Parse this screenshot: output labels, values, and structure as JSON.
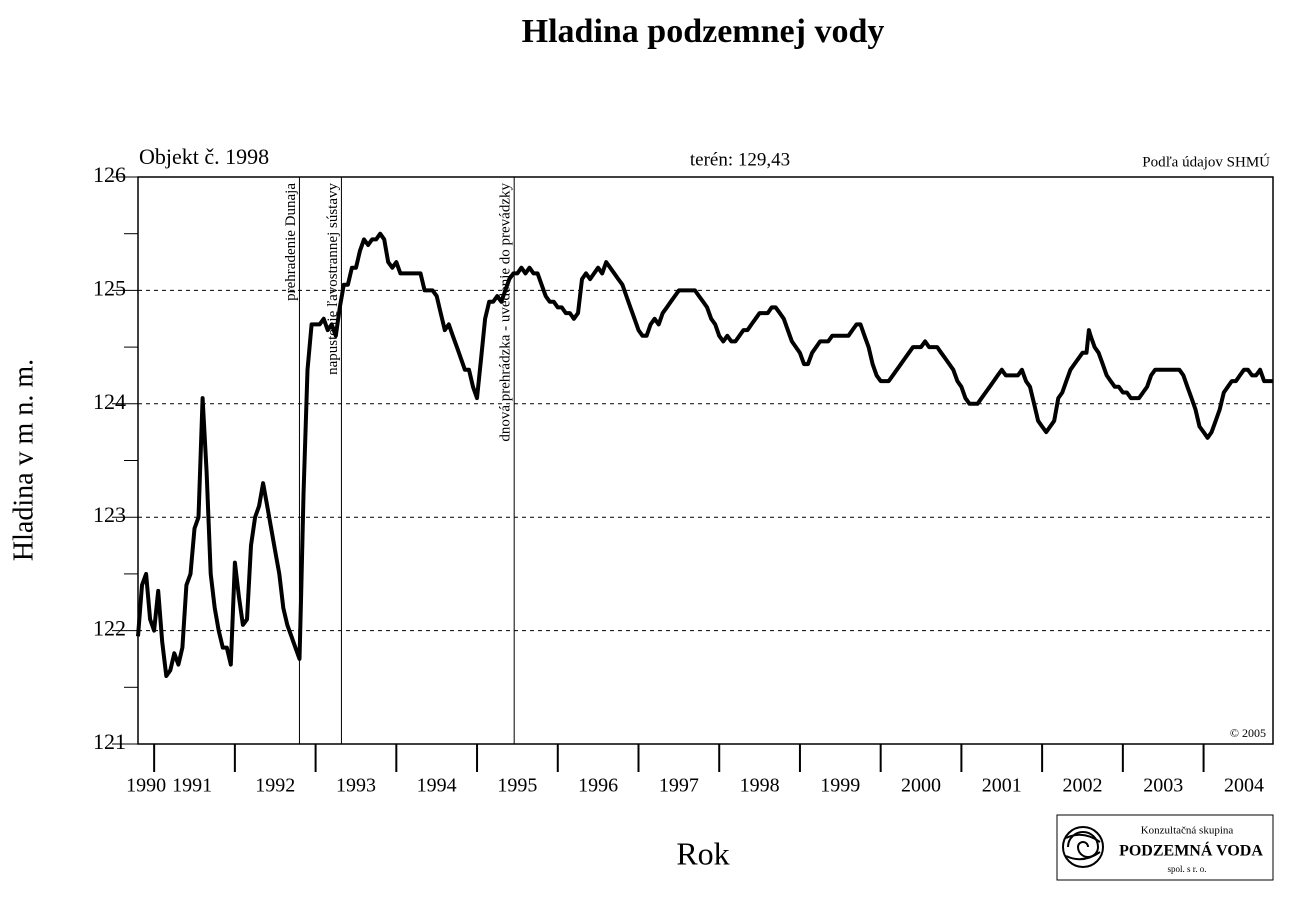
{
  "chart_data": {
    "type": "line",
    "title": "Hladina podzemnej vody",
    "object_label": "Objekt č. 1998",
    "terrain_label": "terén: 129,43",
    "source": "Podľa údajov SHMÚ",
    "copyright": "© 2005",
    "y_label": "Hladina v m n. m.",
    "x_label": "Rok",
    "logo": {
      "line1": "Konzultačná skupina",
      "line2": "PODZEMNÁ VODA",
      "line3": "spol. s r. o."
    },
    "color": "#000000",
    "grid": true,
    "xlim": [
      1990.8,
      2004.86
    ],
    "ylim": [
      121,
      126
    ],
    "yticks": [
      121,
      122,
      123,
      124,
      125,
      126
    ],
    "yticks_minor": [
      121.5,
      122.5,
      123.5,
      124.5,
      125.5
    ],
    "xticks": [
      {
        "value": 1990.9,
        "label": "1990"
      },
      {
        "value": 1991.47,
        "label": "1991"
      },
      {
        "value": 1992.5,
        "label": "1992"
      },
      {
        "value": 1993.5,
        "label": "1993"
      },
      {
        "value": 1994.5,
        "label": "1994"
      },
      {
        "value": 1995.5,
        "label": "1995"
      },
      {
        "value": 1996.5,
        "label": "1996"
      },
      {
        "value": 1997.5,
        "label": "1997"
      },
      {
        "value": 1998.5,
        "label": "1998"
      },
      {
        "value": 1999.5,
        "label": "1999"
      },
      {
        "value": 2000.5,
        "label": "2000"
      },
      {
        "value": 2001.5,
        "label": "2001"
      },
      {
        "value": 2002.5,
        "label": "2002"
      },
      {
        "value": 2003.5,
        "label": "2003"
      },
      {
        "value": 2004.5,
        "label": "2004"
      }
    ],
    "xticks_major": [
      1991,
      1992,
      1993,
      1994,
      1995,
      1996,
      1997,
      1998,
      1999,
      2000,
      2001,
      2002,
      2003,
      2004
    ],
    "annotations": [
      {
        "text": "prehradenie Dunaja",
        "x": 1992.8
      },
      {
        "text": "napustenie ľavostrannej sústavy",
        "x": 1993.32
      },
      {
        "text": "dnová prehrádzka - uvedenie do prevádzky",
        "x": 1995.46
      }
    ],
    "x": [
      1990.8,
      1990.85,
      1990.9,
      1990.95,
      1991.0,
      1991.05,
      1991.1,
      1991.15,
      1991.2,
      1991.25,
      1991.3,
      1991.35,
      1991.4,
      1991.45,
      1991.5,
      1991.55,
      1991.6,
      1991.65,
      1991.7,
      1991.75,
      1991.8,
      1991.85,
      1991.9,
      1991.95,
      1992.0,
      1992.05,
      1992.1,
      1992.15,
      1992.2,
      1992.25,
      1992.3,
      1992.35,
      1992.4,
      1992.45,
      1992.5,
      1992.55,
      1992.6,
      1992.65,
      1992.7,
      1992.75,
      1992.8,
      1992.82,
      1992.85,
      1992.9,
      1992.95,
      1993.0,
      1993.05,
      1993.1,
      1993.15,
      1993.2,
      1993.25,
      1993.3,
      1993.35,
      1993.4,
      1993.45,
      1993.5,
      1993.55,
      1993.6,
      1993.65,
      1993.7,
      1993.75,
      1993.8,
      1993.85,
      1993.9,
      1993.95,
      1994.0,
      1994.05,
      1994.1,
      1994.15,
      1994.2,
      1994.25,
      1994.3,
      1994.35,
      1994.4,
      1994.45,
      1994.5,
      1994.55,
      1994.6,
      1994.65,
      1994.7,
      1994.75,
      1994.8,
      1994.85,
      1994.9,
      1994.95,
      1995.0,
      1995.05,
      1995.1,
      1995.15,
      1995.2,
      1995.25,
      1995.3,
      1995.35,
      1995.4,
      1995.45,
      1995.5,
      1995.55,
      1995.6,
      1995.65,
      1995.7,
      1995.75,
      1995.8,
      1995.85,
      1995.9,
      1995.95,
      1996.0,
      1996.05,
      1996.1,
      1996.15,
      1996.2,
      1996.25,
      1996.3,
      1996.35,
      1996.4,
      1996.45,
      1996.5,
      1996.55,
      1996.6,
      1996.65,
      1996.7,
      1996.75,
      1996.8,
      1996.85,
      1996.9,
      1996.95,
      1997.0,
      1997.05,
      1997.1,
      1997.15,
      1997.2,
      1997.25,
      1997.3,
      1997.35,
      1997.4,
      1997.45,
      1997.5,
      1997.55,
      1997.6,
      1997.65,
      1997.7,
      1997.75,
      1997.8,
      1997.85,
      1997.9,
      1997.95,
      1998.0,
      1998.05,
      1998.1,
      1998.15,
      1998.2,
      1998.25,
      1998.3,
      1998.35,
      1998.4,
      1998.45,
      1998.5,
      1998.55,
      1998.6,
      1998.65,
      1998.7,
      1998.75,
      1998.8,
      1998.85,
      1998.9,
      1998.95,
      1999.0,
      1999.05,
      1999.1,
      1999.15,
      1999.2,
      1999.25,
      1999.3,
      1999.35,
      1999.4,
      1999.45,
      1999.5,
      1999.55,
      1999.6,
      1999.65,
      1999.7,
      1999.75,
      1999.8,
      1999.85,
      1999.9,
      1999.95,
      2000.0,
      2000.05,
      2000.1,
      2000.15,
      2000.2,
      2000.25,
      2000.3,
      2000.35,
      2000.4,
      2000.45,
      2000.5,
      2000.55,
      2000.6,
      2000.65,
      2000.7,
      2000.75,
      2000.8,
      2000.85,
      2000.9,
      2000.95,
      2001.0,
      2001.05,
      2001.1,
      2001.15,
      2001.2,
      2001.25,
      2001.3,
      2001.35,
      2001.4,
      2001.45,
      2001.5,
      2001.55,
      2001.6,
      2001.65,
      2001.7,
      2001.75,
      2001.8,
      2001.85,
      2001.9,
      2001.95,
      2002.0,
      2002.05,
      2002.1,
      2002.15,
      2002.2,
      2002.25,
      2002.3,
      2002.35,
      2002.4,
      2002.45,
      2002.5,
      2002.55,
      2002.58,
      2002.6,
      2002.65,
      2002.7,
      2002.75,
      2002.8,
      2002.85,
      2002.9,
      2002.95,
      2003.0,
      2003.05,
      2003.1,
      2003.15,
      2003.2,
      2003.25,
      2003.3,
      2003.35,
      2003.4,
      2003.45,
      2003.5,
      2003.55,
      2003.6,
      2003.65,
      2003.7,
      2003.75,
      2003.8,
      2003.85,
      2003.9,
      2003.95,
      2004.0,
      2004.05,
      2004.1,
      2004.15,
      2004.2,
      2004.25,
      2004.3,
      2004.35,
      2004.4,
      2004.45,
      2004.5,
      2004.55,
      2004.6,
      2004.65,
      2004.7,
      2004.75,
      2004.86
    ],
    "values": [
      121.95,
      122.4,
      122.5,
      122.1,
      122.0,
      122.35,
      121.9,
      121.6,
      121.65,
      121.8,
      121.7,
      121.85,
      122.4,
      122.5,
      122.9,
      123.0,
      124.05,
      123.4,
      122.5,
      122.2,
      122.0,
      121.85,
      121.85,
      121.7,
      122.6,
      122.3,
      122.05,
      122.1,
      122.75,
      123.0,
      123.1,
      123.3,
      123.1,
      122.9,
      122.7,
      122.5,
      122.2,
      122.05,
      121.95,
      121.85,
      121.75,
      122.3,
      123.2,
      124.3,
      124.7,
      124.7,
      124.7,
      124.75,
      124.65,
      124.7,
      124.6,
      124.85,
      125.05,
      125.05,
      125.2,
      125.2,
      125.35,
      125.45,
      125.4,
      125.45,
      125.45,
      125.5,
      125.45,
      125.25,
      125.2,
      125.25,
      125.15,
      125.15,
      125.15,
      125.15,
      125.15,
      125.15,
      125.0,
      125.0,
      125.0,
      124.95,
      124.8,
      124.65,
      124.7,
      124.6,
      124.5,
      124.4,
      124.3,
      124.3,
      124.15,
      124.05,
      124.4,
      124.75,
      124.9,
      124.9,
      124.95,
      124.9,
      125.0,
      125.1,
      125.15,
      125.15,
      125.2,
      125.15,
      125.2,
      125.15,
      125.15,
      125.05,
      124.95,
      124.9,
      124.9,
      124.85,
      124.85,
      124.8,
      124.8,
      124.75,
      124.8,
      125.1,
      125.15,
      125.1,
      125.15,
      125.2,
      125.15,
      125.25,
      125.2,
      125.15,
      125.1,
      125.05,
      124.95,
      124.85,
      124.75,
      124.65,
      124.6,
      124.6,
      124.7,
      124.75,
      124.7,
      124.8,
      124.85,
      124.9,
      124.95,
      125.0,
      125.0,
      125.0,
      125.0,
      125.0,
      124.95,
      124.9,
      124.85,
      124.75,
      124.7,
      124.6,
      124.55,
      124.6,
      124.55,
      124.55,
      124.6,
      124.65,
      124.65,
      124.7,
      124.75,
      124.8,
      124.8,
      124.8,
      124.85,
      124.85,
      124.8,
      124.75,
      124.65,
      124.55,
      124.5,
      124.45,
      124.35,
      124.35,
      124.45,
      124.5,
      124.55,
      124.55,
      124.55,
      124.6,
      124.6,
      124.6,
      124.6,
      124.6,
      124.65,
      124.7,
      124.7,
      124.6,
      124.5,
      124.35,
      124.25,
      124.2,
      124.2,
      124.2,
      124.25,
      124.3,
      124.35,
      124.4,
      124.45,
      124.5,
      124.5,
      124.5,
      124.55,
      124.5,
      124.5,
      124.5,
      124.45,
      124.4,
      124.35,
      124.3,
      124.2,
      124.15,
      124.05,
      124.0,
      124.0,
      124.0,
      124.05,
      124.1,
      124.15,
      124.2,
      124.25,
      124.3,
      124.25,
      124.25,
      124.25,
      124.25,
      124.3,
      124.2,
      124.15,
      124.0,
      123.85,
      123.8,
      123.75,
      123.8,
      123.85,
      124.05,
      124.1,
      124.2,
      124.3,
      124.35,
      124.4,
      124.45,
      124.45,
      124.65,
      124.6,
      124.5,
      124.45,
      124.35,
      124.25,
      124.2,
      124.15,
      124.15,
      124.1,
      124.1,
      124.05,
      124.05,
      124.05,
      124.1,
      124.15,
      124.25,
      124.3,
      124.3,
      124.3,
      124.3,
      124.3,
      124.3,
      124.3,
      124.25,
      124.15,
      124.05,
      123.95,
      123.8,
      123.75,
      123.7,
      123.75,
      123.85,
      123.95,
      124.1,
      124.15,
      124.2,
      124.2,
      124.25,
      124.3,
      124.3,
      124.25,
      124.25,
      124.3,
      124.2,
      124.2
    ]
  }
}
